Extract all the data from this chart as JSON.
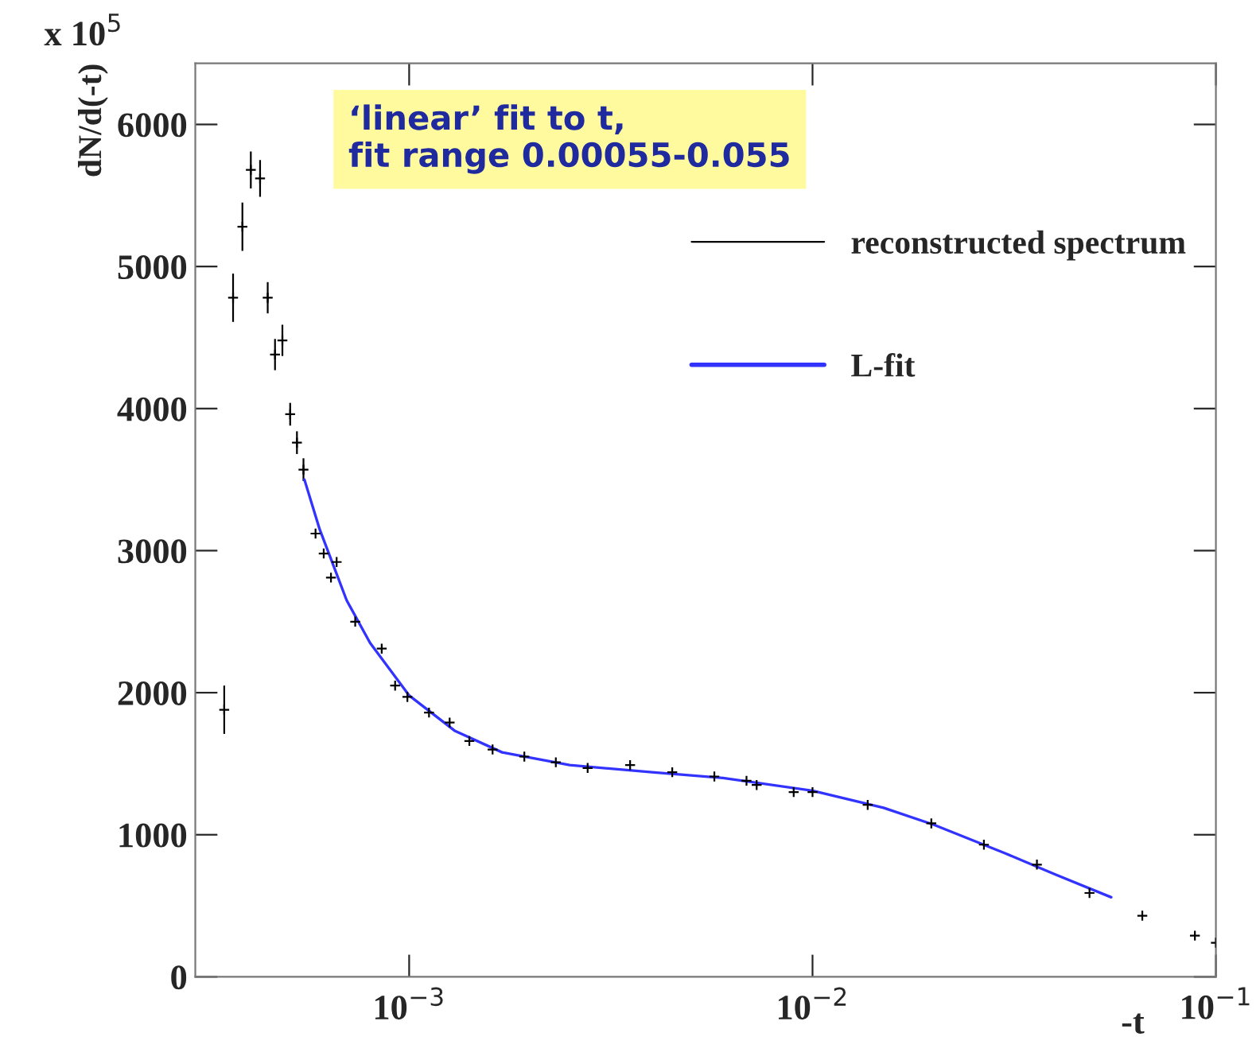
{
  "chart_data": {
    "type": "scatter",
    "xlabel": "-t",
    "ylabel": "dN/d(-t)",
    "log": "x",
    "xlim": [
      0.000295,
      0.1
    ],
    "ylim": [
      0,
      6430
    ],
    "xticks": [
      {
        "value": 0.001,
        "label": "10$^{−3}$"
      },
      {
        "value": 0.01,
        "label": "10$^{−2}$"
      },
      {
        "value": 0.1,
        "label": "10$^{−1}$"
      }
    ],
    "yticks": [
      0,
      1000,
      2000,
      3000,
      4000,
      5000,
      6000
    ],
    "grid": false,
    "legend": "top right",
    "annotations": [
      "x 10$^{5}$",
      "‘linear’ fit to t,\nfit range 0.00055-0.055"
    ],
    "series": [
      {
        "name": "reconstructed spectrum",
        "color": "#000000",
        "marker": "cross",
        "x": [
          0.000348,
          0.000366,
          0.000386,
          0.000405,
          0.000427,
          0.000446,
          0.000465,
          0.000485,
          0.000507,
          0.000527,
          0.000547,
          0.000586,
          0.000614,
          0.00064,
          0.000661,
          0.000735,
          0.000855,
          0.000923,
          0.00099,
          0.00112,
          0.00126,
          0.00141,
          0.00161,
          0.00193,
          0.00231,
          0.00277,
          0.00353,
          0.00449,
          0.00571,
          0.00686,
          0.00727,
          0.00898,
          0.01,
          0.0137,
          0.0197,
          0.0266,
          0.036,
          0.0486,
          0.0657,
          0.0887,
          0.1
        ],
        "values": [
          1880,
          4780,
          5280,
          5680,
          5620,
          4780,
          4380,
          4480,
          3960,
          3760,
          3570,
          3120,
          2980,
          2810,
          2920,
          2500,
          2310,
          2050,
          1970,
          1860,
          1790,
          1660,
          1600,
          1550,
          1510,
          1470,
          1490,
          1440,
          1410,
          1380,
          1350,
          1300,
          1300,
          1210,
          1080,
          930,
          790,
          590,
          430,
          290,
          240
        ],
        "errors": [
          170,
          170,
          170,
          130,
          130,
          110,
          110,
          110,
          80,
          80,
          80,
          null,
          null,
          null,
          null,
          null,
          null,
          null,
          null,
          null,
          null,
          null,
          null,
          null,
          null,
          null,
          null,
          null,
          null,
          null,
          null,
          null,
          null,
          null,
          null,
          null,
          null,
          null,
          null,
          null,
          null
        ]
      },
      {
        "name": "L-fit",
        "color": "#3333ff",
        "type": "line",
        "marker": "none",
        "x": [
          0.00055,
          0.0006,
          0.0007,
          0.0008,
          0.001,
          0.0013,
          0.0017,
          0.0025,
          0.004,
          0.006,
          0.01,
          0.015,
          0.02,
          0.03,
          0.04,
          0.055
        ],
        "values": [
          3500,
          3150,
          2650,
          2350,
          1980,
          1730,
          1580,
          1490,
          1440,
          1400,
          1310,
          1190,
          1070,
          870,
          720,
          560
        ]
      }
    ]
  }
}
